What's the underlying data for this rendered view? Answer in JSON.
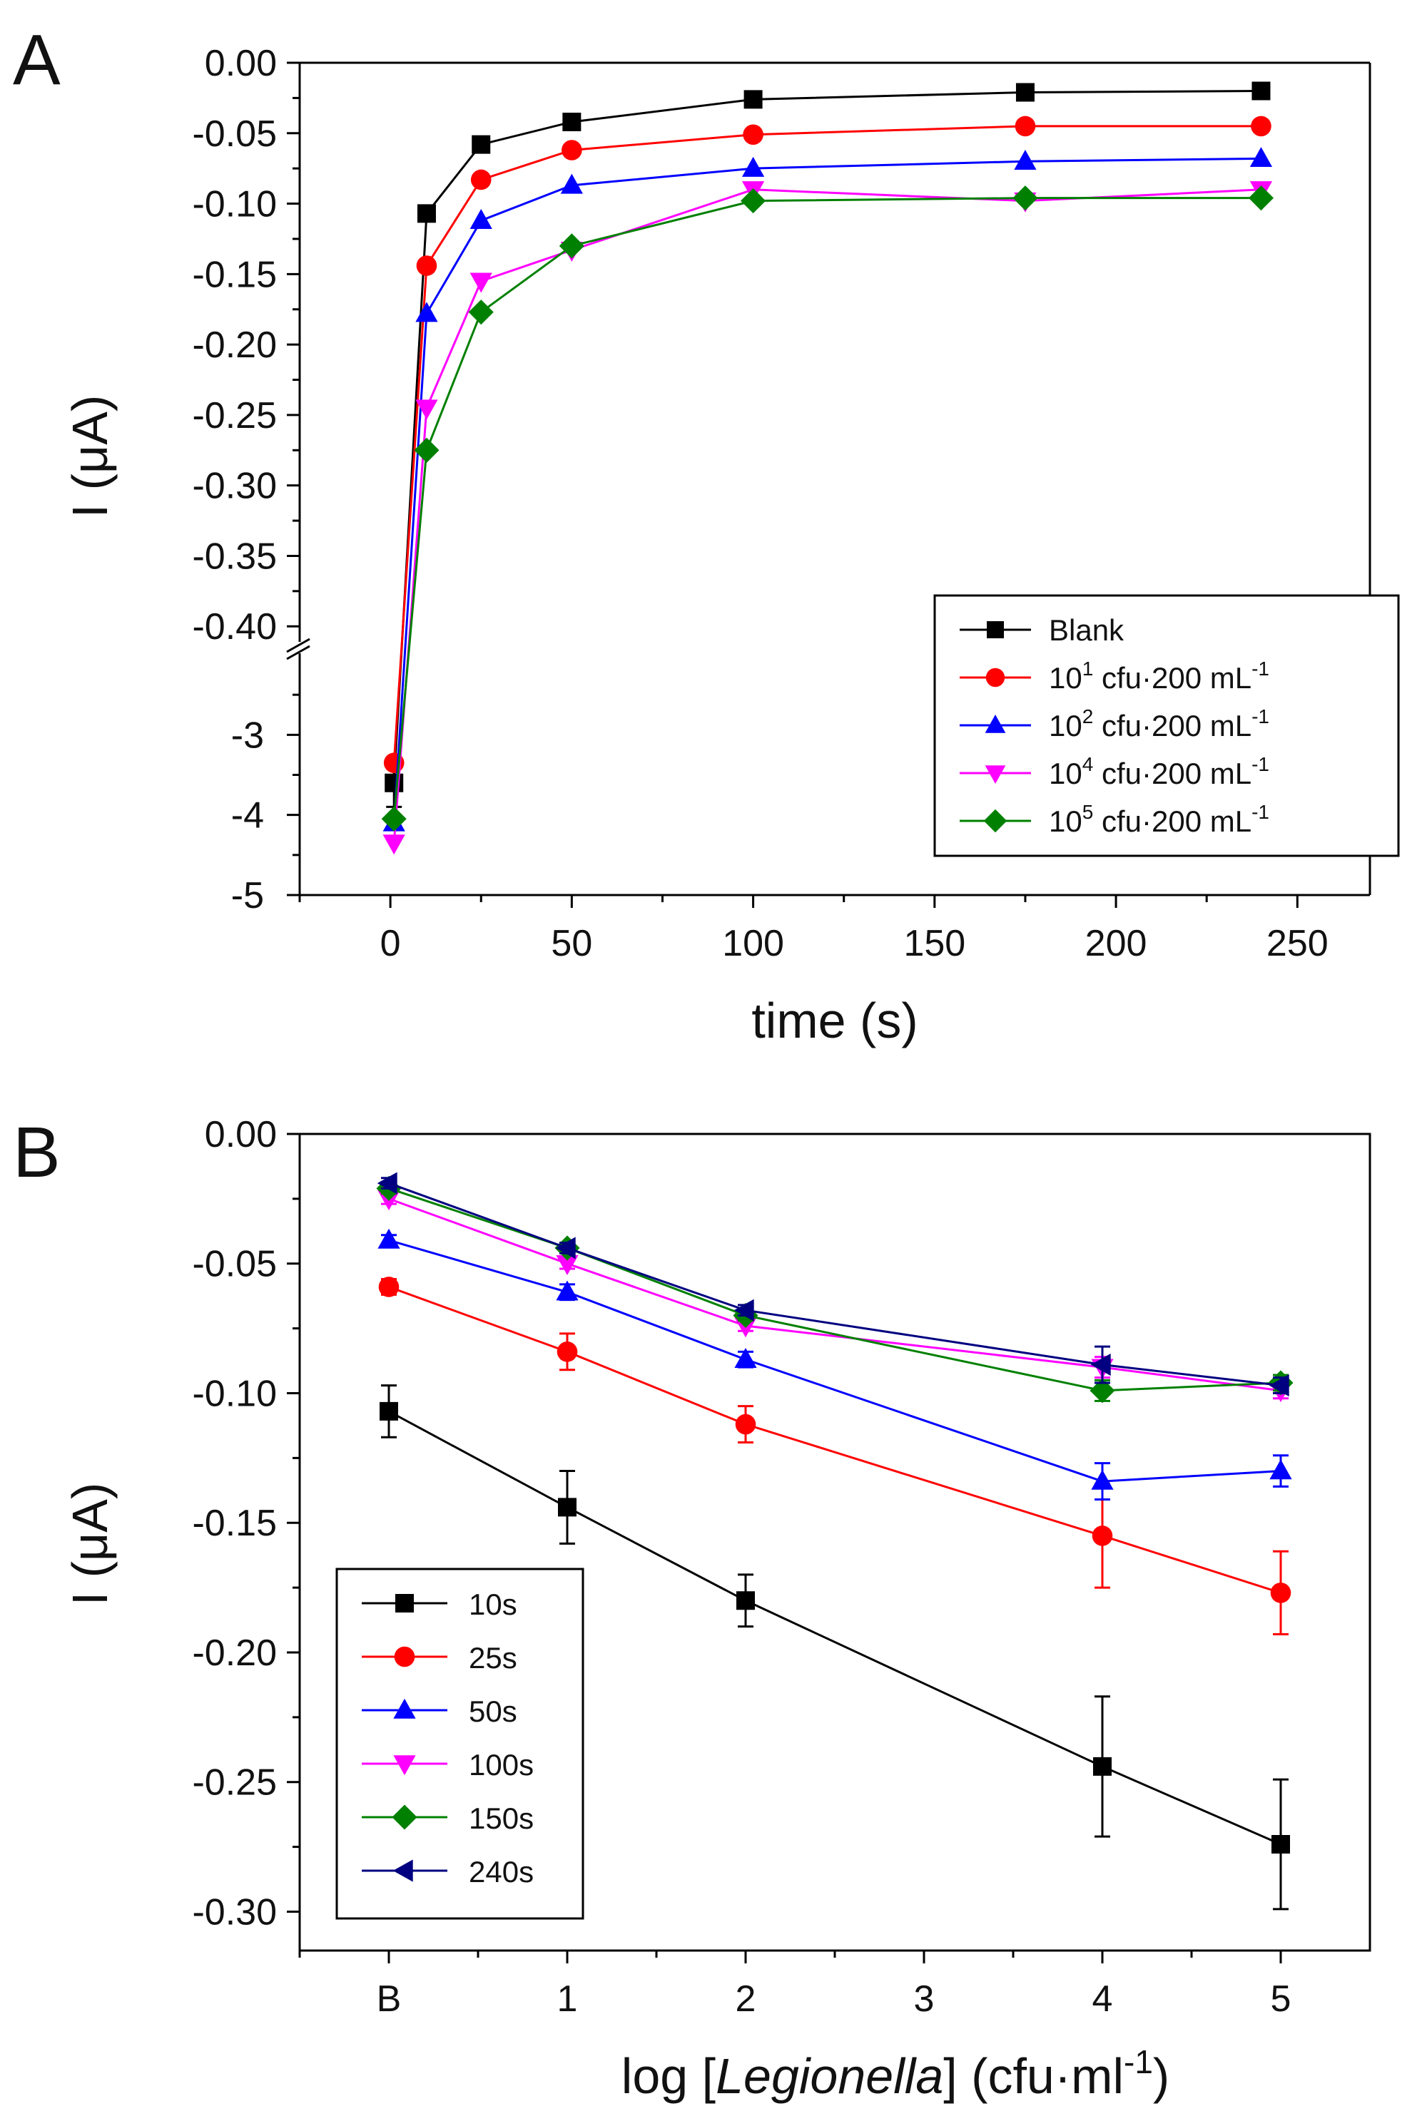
{
  "chart_data": [
    {
      "panel_label": "A",
      "type": "line",
      "xlabel": "time (s)",
      "ylabel": "I (μA)",
      "x_ticks": [
        "0",
        "50",
        "100",
        "150",
        "200",
        "250"
      ],
      "x_tick_values": [
        0,
        50,
        100,
        150,
        200,
        250
      ],
      "xlim": [
        -25,
        270
      ],
      "y_ticks_upper": [
        "0.00",
        "-0.05",
        "-0.10",
        "-0.15",
        "-0.20",
        "-0.25",
        "-0.30",
        "-0.35",
        "-0.40"
      ],
      "y_tick_values_upper": [
        0,
        -0.05,
        -0.1,
        -0.15,
        -0.2,
        -0.25,
        -0.3,
        -0.35,
        -0.4
      ],
      "ylim_upper": [
        -0.41,
        0.0
      ],
      "y_ticks_lower": [
        "-3",
        "-4",
        "-5"
      ],
      "y_tick_values_lower": [
        -3,
        -4,
        -5
      ],
      "ylim_lower": [
        -5.0,
        -2.0
      ],
      "axis_break": true,
      "legend_position": "lower-right",
      "x": [
        1,
        10,
        25,
        50,
        100,
        175,
        240
      ],
      "series": [
        {
          "name": "Blank",
          "base": "",
          "exp": "",
          "rest": "",
          "unit_exp": "",
          "marker": "square",
          "color": "#000000",
          "values": [
            -3.6,
            -0.107,
            -0.058,
            -0.042,
            -0.026,
            -0.021,
            -0.02
          ],
          "errors": [
            0.3,
            0.005,
            0.003,
            0.003,
            0.002,
            0.002,
            0.002
          ]
        },
        {
          "name": "10^1 cfu·200 mL^-1",
          "base": "10",
          "exp": "1",
          "rest": " cfu·200 mL",
          "unit_exp": "-1",
          "marker": "circle",
          "color": "#ff0000",
          "values": [
            -3.35,
            -0.144,
            -0.083,
            -0.062,
            -0.051,
            -0.045,
            -0.045
          ],
          "errors": [
            0,
            0,
            0,
            0,
            0,
            0,
            0
          ]
        },
        {
          "name": "10^2 cfu·200 mL^-1",
          "base": "10",
          "exp": "2",
          "rest": " cfu·200 mL",
          "unit_exp": "-1",
          "marker": "triangle-up",
          "color": "#0000ff",
          "values": [
            -4.1,
            -0.178,
            -0.112,
            -0.087,
            -0.075,
            -0.07,
            -0.068
          ],
          "errors": [
            0,
            0,
            0,
            0,
            0,
            0,
            0
          ]
        },
        {
          "name": "10^4 cfu·200 mL^-1",
          "base": "10",
          "exp": "4",
          "rest": " cfu·200 mL",
          "unit_exp": "-1",
          "marker": "triangle-down",
          "color": "#ff00ff",
          "values": [
            -4.35,
            -0.245,
            -0.155,
            -0.133,
            -0.09,
            -0.098,
            -0.09
          ],
          "errors": [
            0,
            0,
            0,
            0,
            0,
            0,
            0
          ]
        },
        {
          "name": "10^5 cfu·200 mL^-1",
          "base": "10",
          "exp": "5",
          "rest": " cfu·200 mL",
          "unit_exp": "-1",
          "marker": "diamond",
          "color": "#008000",
          "values": [
            -4.05,
            -0.275,
            -0.177,
            -0.13,
            -0.098,
            -0.096,
            -0.096
          ],
          "errors": [
            0,
            0,
            0,
            0,
            0,
            0,
            0
          ]
        }
      ]
    },
    {
      "panel_label": "B",
      "type": "line",
      "xlabel_prefix": "log [",
      "xlabel_italic": "Legionella",
      "xlabel_suffix": "] (cfu·ml",
      "xlabel_sup": "-1",
      "xlabel_close": ")",
      "ylabel": "I (μA)",
      "x_ticks": [
        "B",
        "1",
        "2",
        "3",
        "4",
        "5"
      ],
      "x_tick_values": [
        0,
        1,
        2,
        3,
        4,
        5
      ],
      "xlim": [
        -0.5,
        5.5
      ],
      "y_ticks": [
        "0.00",
        "-0.05",
        "-0.10",
        "-0.15",
        "-0.20",
        "-0.25",
        "-0.30"
      ],
      "y_tick_values": [
        0,
        -0.05,
        -0.1,
        -0.15,
        -0.2,
        -0.25,
        -0.3
      ],
      "ylim": [
        -0.315,
        0.0
      ],
      "legend_position": "lower-left",
      "x": [
        0,
        1,
        2,
        4,
        5
      ],
      "series": [
        {
          "name": "10s",
          "marker": "square",
          "color": "#000000",
          "values": [
            -0.107,
            -0.144,
            -0.18,
            -0.244,
            -0.274
          ],
          "errors": [
            0.01,
            0.014,
            0.01,
            0.027,
            0.025
          ]
        },
        {
          "name": "25s",
          "marker": "circle",
          "color": "#ff0000",
          "values": [
            -0.059,
            -0.084,
            -0.112,
            -0.155,
            -0.177
          ],
          "errors": [
            0.003,
            0.007,
            0.007,
            0.02,
            0.016
          ]
        },
        {
          "name": "50s",
          "marker": "triangle-up",
          "color": "#0000ff",
          "values": [
            -0.041,
            -0.061,
            -0.087,
            -0.134,
            -0.13
          ],
          "errors": [
            0.002,
            0.003,
            0.003,
            0.007,
            0.006
          ]
        },
        {
          "name": "100s",
          "marker": "triangle-down",
          "color": "#ff00ff",
          "values": [
            -0.025,
            -0.05,
            -0.074,
            -0.09,
            -0.099
          ],
          "errors": [
            0.002,
            0.002,
            0.002,
            0.004,
            0.003
          ]
        },
        {
          "name": "150s",
          "marker": "diamond",
          "color": "#008000",
          "values": [
            -0.021,
            -0.044,
            -0.07,
            -0.099,
            -0.096
          ],
          "errors": [
            0.002,
            0.002,
            0.002,
            0.004,
            0.003
          ]
        },
        {
          "name": "240s",
          "marker": "triangle-left",
          "color": "#000080",
          "values": [
            -0.019,
            -0.044,
            -0.068,
            -0.089,
            -0.097
          ],
          "errors": [
            0.002,
            0.002,
            0.002,
            0.007,
            0.003
          ]
        }
      ]
    }
  ]
}
